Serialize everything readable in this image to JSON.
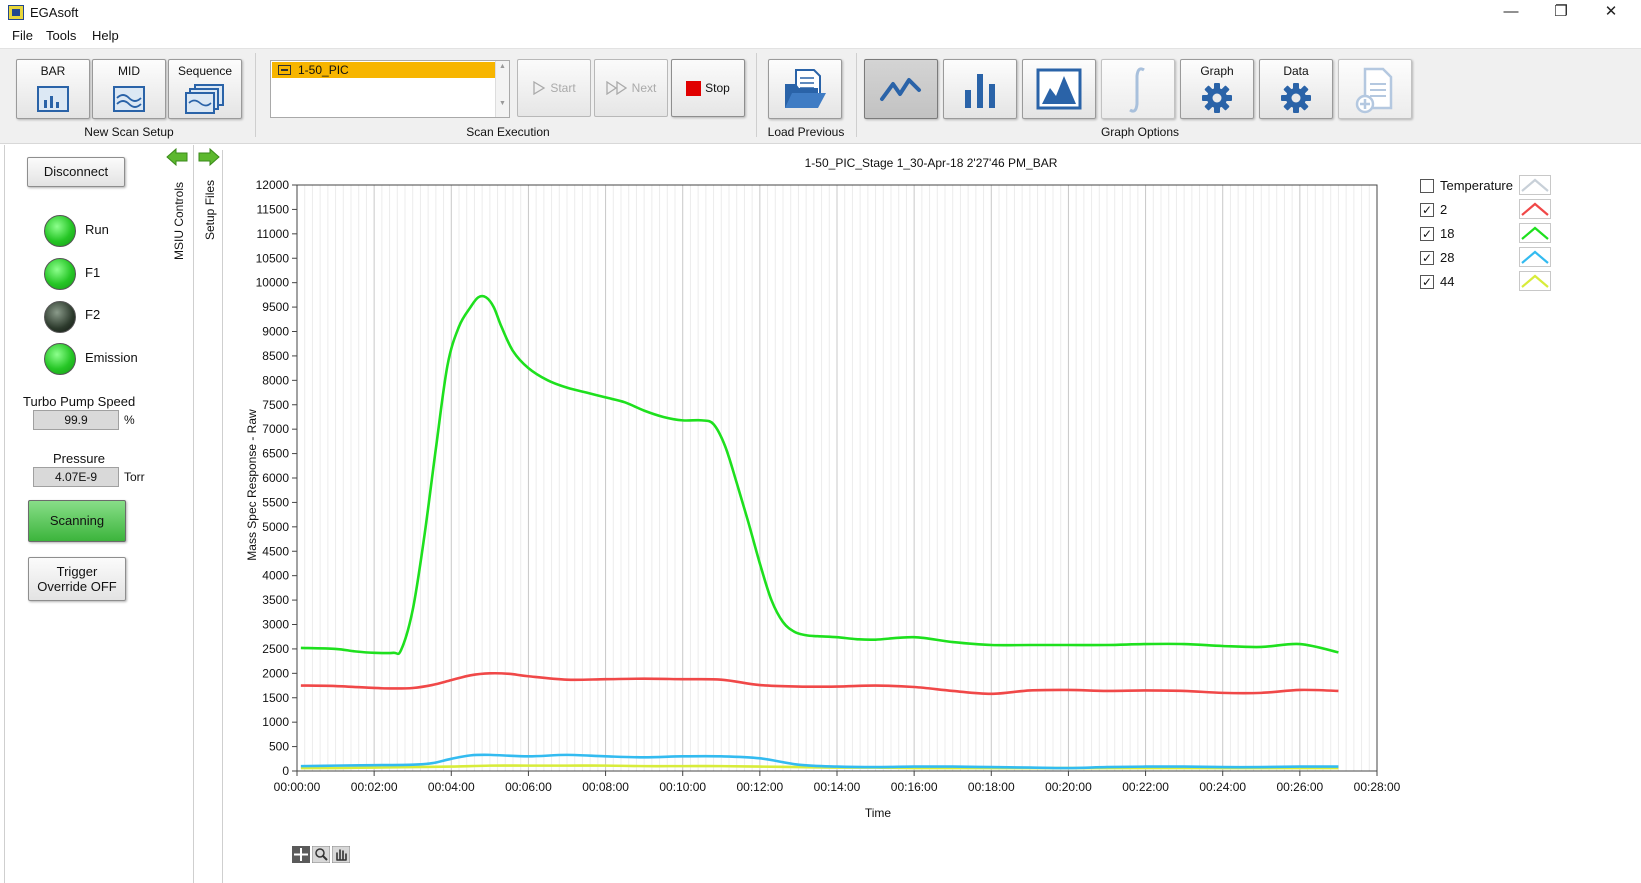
{
  "window": {
    "title": "EGAsoft"
  },
  "menu": [
    "File",
    "Tools",
    "Help"
  ],
  "toolbar": {
    "new_scan": {
      "buttons": [
        "BAR",
        "MID",
        "Sequence"
      ],
      "group_label": "New Scan Setup"
    },
    "scan_execution": {
      "list_items": [
        "1-50_PIC"
      ],
      "start_label": "Start",
      "next_label": "Next",
      "stop_label": "Stop",
      "group_label": "Scan Execution"
    },
    "load_previous": {
      "group_label": "Load Previous"
    },
    "graph_options": {
      "graph_label": "Graph",
      "data_label": "Data",
      "group_label": "Graph Options"
    }
  },
  "left_panel": {
    "disconnect_label": "Disconnect",
    "indicators": [
      {
        "label": "Run",
        "on": true
      },
      {
        "label": "F1",
        "on": true
      },
      {
        "label": "F2",
        "on": false
      },
      {
        "label": "Emission",
        "on": true
      }
    ],
    "turbo": {
      "label": "Turbo Pump Speed",
      "value": "99.9",
      "unit": "%"
    },
    "pressure": {
      "label": "Pressure",
      "value": "4.07E-9",
      "unit": "Torr"
    },
    "scanning_label": "Scanning",
    "trigger_label_1": "Trigger",
    "trigger_label_2": "Override OFF",
    "tabs": [
      "MSIU Controls",
      "Setup Files"
    ]
  },
  "colors": {
    "series_2": "#f04848",
    "series_18": "#1ee01e",
    "series_28": "#33bbf0",
    "series_44": "#d8ec3a",
    "temperature": "#c8d0d8",
    "scanning_button": "#4cc24c",
    "selected_scan": "#f7b500",
    "stop_icon": "#e00000"
  },
  "chart_data": {
    "type": "line",
    "title": "1-50_PIC_Stage 1_30-Apr-18 2'27'46 PM_BAR",
    "xlabel": "Time",
    "ylabel": "Mass Spec Response - Raw",
    "xlim": [
      0,
      28
    ],
    "ylim": [
      0,
      12000
    ],
    "x_tick_labels": [
      "00:00:00",
      "00:02:00",
      "00:04:00",
      "00:06:00",
      "00:08:00",
      "00:10:00",
      "00:12:00",
      "00:14:00",
      "00:16:00",
      "00:18:00",
      "00:20:00",
      "00:22:00",
      "00:24:00",
      "00:26:00",
      "00:28:00"
    ],
    "y_ticks": [
      0,
      500,
      1000,
      1500,
      2000,
      2500,
      3000,
      3500,
      4000,
      4500,
      5000,
      5500,
      6000,
      6500,
      7000,
      7500,
      8000,
      8500,
      9000,
      9500,
      10000,
      10500,
      11000,
      11500,
      12000
    ],
    "grid": true,
    "legend": "right",
    "series": [
      {
        "name": "Temperature",
        "checked": false,
        "x": [],
        "y": []
      },
      {
        "name": "2",
        "checked": true,
        "x": [
          0.1,
          1,
          2,
          2.5,
          3,
          3.5,
          4,
          4.5,
          5,
          5.5,
          6,
          7,
          8,
          9,
          10,
          11,
          12,
          13,
          14,
          15,
          16,
          17,
          18,
          19,
          20,
          21,
          22,
          23,
          24,
          25,
          26,
          27
        ],
        "y": [
          1750,
          1740,
          1700,
          1690,
          1700,
          1760,
          1860,
          1960,
          2000,
          1990,
          1940,
          1870,
          1880,
          1890,
          1880,
          1870,
          1760,
          1730,
          1730,
          1750,
          1720,
          1640,
          1580,
          1650,
          1660,
          1640,
          1650,
          1640,
          1600,
          1600,
          1660,
          1640
        ]
      },
      {
        "name": "18",
        "checked": true,
        "x": [
          0.1,
          1,
          1.5,
          2,
          2.5,
          2.7,
          3,
          3.3,
          3.6,
          3.9,
          4.2,
          4.5,
          4.7,
          4.9,
          5.1,
          5.3,
          5.6,
          6,
          6.5,
          7,
          7.5,
          8,
          8.5,
          9,
          9.5,
          10,
          10.5,
          10.8,
          11.1,
          11.4,
          11.7,
          12,
          12.3,
          12.6,
          12.9,
          13.2,
          13.5,
          14,
          14.5,
          15,
          16,
          17,
          18,
          19,
          20,
          21,
          22,
          23,
          24,
          25,
          26,
          27
        ],
        "y": [
          2520,
          2500,
          2450,
          2420,
          2420,
          2480,
          3300,
          4800,
          6600,
          8300,
          9100,
          9500,
          9700,
          9700,
          9500,
          9100,
          8600,
          8250,
          8000,
          7850,
          7750,
          7650,
          7550,
          7380,
          7250,
          7180,
          7180,
          7100,
          6650,
          5900,
          5100,
          4250,
          3500,
          3050,
          2850,
          2780,
          2760,
          2740,
          2700,
          2690,
          2740,
          2640,
          2580,
          2580,
          2580,
          2580,
          2600,
          2600,
          2560,
          2540,
          2600,
          2430
        ]
      },
      {
        "name": "28",
        "checked": true,
        "x": [
          0.1,
          1,
          2,
          3,
          3.5,
          4,
          4.5,
          5,
          6,
          7,
          8,
          9,
          10,
          11,
          12,
          13,
          14,
          15,
          16,
          17,
          18,
          19,
          20,
          21,
          22,
          23,
          24,
          25,
          26,
          27
        ],
        "y": [
          100,
          110,
          120,
          130,
          160,
          250,
          320,
          330,
          300,
          330,
          300,
          280,
          300,
          300,
          260,
          130,
          90,
          80,
          90,
          90,
          80,
          70,
          60,
          80,
          90,
          90,
          80,
          80,
          90,
          90
        ]
      },
      {
        "name": "44",
        "checked": true,
        "x": [
          0.1,
          1,
          2,
          3,
          4,
          5,
          6,
          7,
          8,
          9,
          10,
          11,
          12,
          13,
          14,
          15,
          16,
          17,
          18,
          19,
          20,
          21,
          22,
          23,
          24,
          25,
          26,
          27
        ],
        "y": [
          60,
          60,
          70,
          80,
          90,
          110,
          110,
          110,
          110,
          100,
          100,
          100,
          90,
          80,
          70,
          70,
          60,
          60,
          60,
          60,
          60,
          60,
          60,
          60,
          60,
          60,
          60,
          60
        ]
      }
    ]
  }
}
